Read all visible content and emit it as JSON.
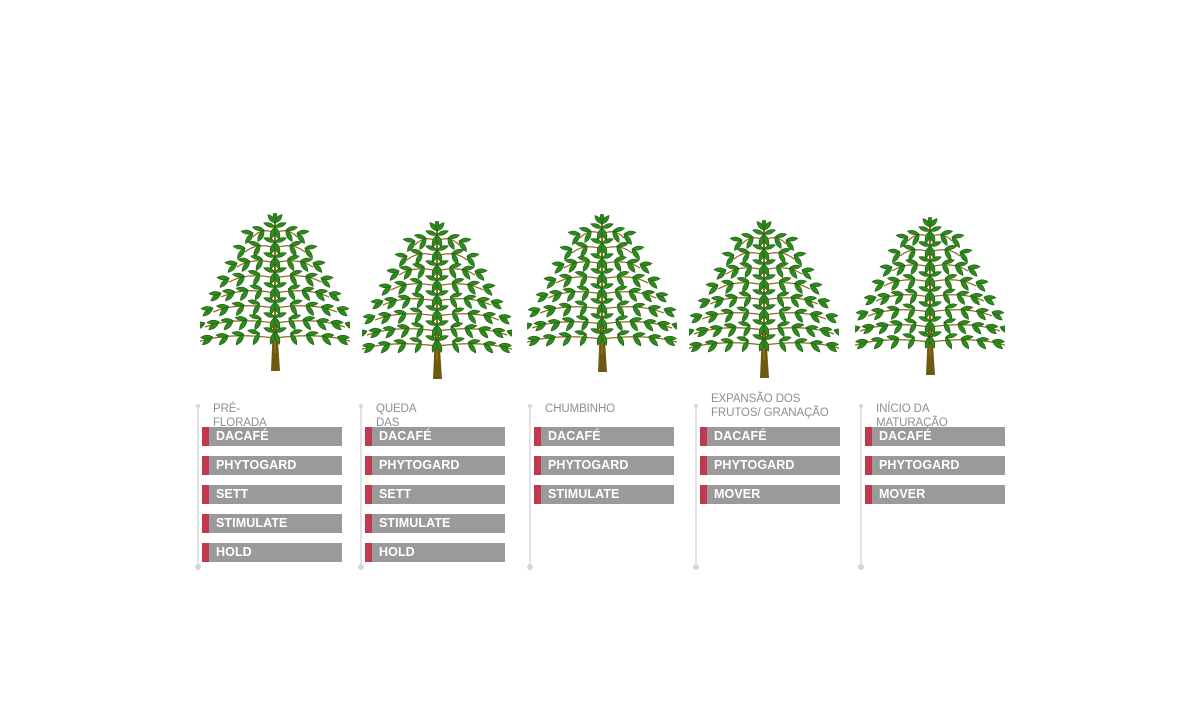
{
  "stages": [
    {
      "label": "PRÉ-FLORADA",
      "products": [
        "DACAFÉ",
        "PHYTOGARD",
        "SETT",
        "STIMULATE",
        "HOLD"
      ]
    },
    {
      "label": "QUEDA DAS PÉTALAS",
      "products": [
        "DACAFÉ",
        "PHYTOGARD",
        "SETT",
        "STIMULATE",
        "HOLD"
      ]
    },
    {
      "label": "CHUMBINHO",
      "products": [
        "DACAFÉ",
        "PHYTOGARD",
        "STIMULATE"
      ]
    },
    {
      "label": "EXPANSÃO DOS FRUTOS/ GRANAÇÃO",
      "products": [
        "DACAFÉ",
        "PHYTOGARD",
        "MOVER"
      ]
    },
    {
      "label": "INÍCIO DA MATURAÇÃO",
      "products": [
        "DACAFÉ",
        "PHYTOGARD",
        "MOVER"
      ]
    }
  ],
  "colors": {
    "accent": "#c0394e",
    "product_bg": "#9a9a9a",
    "label_text": "#8d8f94",
    "leaf": "#2e8a1c",
    "trunk": "#6b5a10"
  },
  "icons": [
    "coffee-plant-icon"
  ]
}
